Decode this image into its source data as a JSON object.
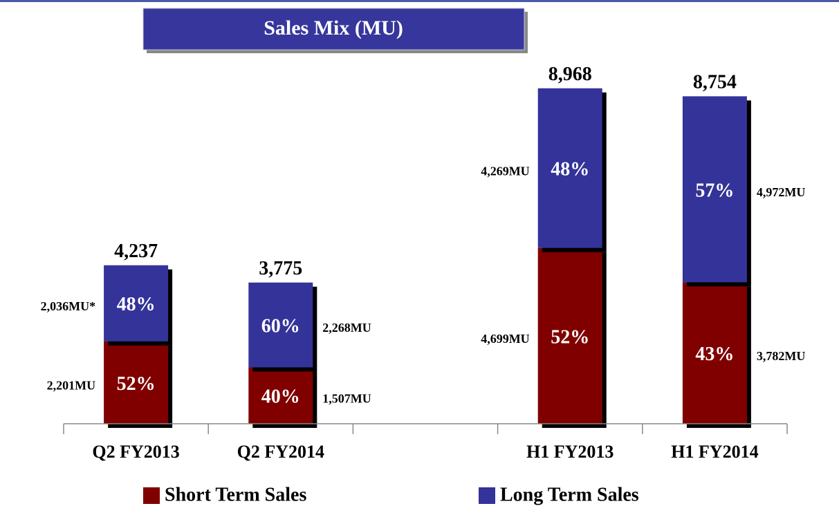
{
  "chart_data": {
    "type": "stacked_bar",
    "title": "Sales Mix (MU)",
    "categories": [
      "Q2 FY2013",
      "Q2 FY2014",
      null,
      "H1 FY2013",
      "H1 FY2014"
    ],
    "series": [
      {
        "name": "Short Term Sales",
        "color": "#800000",
        "values": [
          2201,
          1507,
          null,
          4699,
          3782
        ],
        "value_labels": [
          "2,201MU",
          "1,507MU",
          null,
          "4,699MU",
          "3,782MU"
        ],
        "percents": [
          52,
          40,
          null,
          52,
          43
        ],
        "percent_labels": [
          "52%",
          "40%",
          null,
          "52%",
          "43%"
        ]
      },
      {
        "name": "Long Term Sales",
        "color": "#333399",
        "values": [
          2036,
          2268,
          null,
          4269,
          4972
        ],
        "value_labels": [
          "2,036MU*",
          "2,268MU",
          null,
          "4,269MU",
          "4,972MU"
        ],
        "percents": [
          48,
          60,
          null,
          48,
          57
        ],
        "percent_labels": [
          "48%",
          "60%",
          null,
          "48%",
          "57%"
        ]
      }
    ],
    "totals": [
      4237,
      3775,
      null,
      8968,
      8754
    ],
    "total_labels": [
      "4,237",
      "3,775",
      null,
      "8,968",
      "8,754"
    ],
    "ylim": [
      0,
      9000
    ]
  }
}
